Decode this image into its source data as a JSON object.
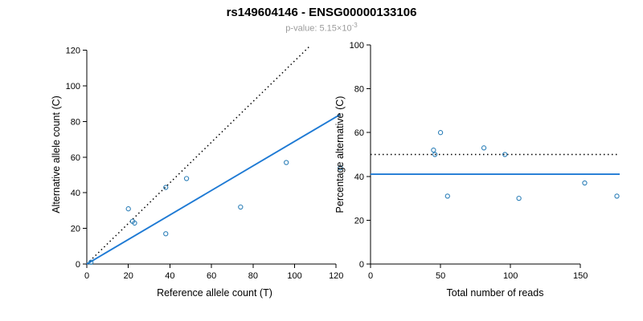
{
  "title": "rs149604146 - ENSG00000133106",
  "p_value": {
    "prefix": "p-value: 5.15×10",
    "exponent": "-3"
  },
  "colors": {
    "line_blue": "#1E7AD4",
    "point_blue": "#2C7FB8",
    "dotted_black": "#000000",
    "subtitle_gray": "#9b9b9b"
  },
  "chart_data": [
    {
      "type": "scatter",
      "title": "",
      "xlabel": "Reference allele count (T)",
      "ylabel": "Alternative allele count (C)",
      "xlim": [
        0,
        123
      ],
      "ylim": [
        0,
        123
      ],
      "xticks": [
        0,
        20,
        40,
        60,
        80,
        100,
        120
      ],
      "yticks": [
        0,
        20,
        40,
        60,
        80,
        100,
        120
      ],
      "grid": false,
      "legend": "none",
      "points": [
        [
          2,
          1
        ],
        [
          20,
          31
        ],
        [
          22,
          24
        ],
        [
          23,
          23
        ],
        [
          38,
          17
        ],
        [
          38,
          43
        ],
        [
          48,
          48
        ],
        [
          74,
          32
        ],
        [
          96,
          57
        ],
        [
          122,
          54
        ]
      ],
      "lines": [
        {
          "name": "expected-identity-line",
          "style": "dotted",
          "color": "#000000",
          "x1": 0,
          "y1": 0,
          "x2": 107,
          "y2": 122
        },
        {
          "name": "fitted-allelic-ratio-line",
          "style": "solid",
          "color": "#1E7AD4",
          "x1": 0,
          "y1": 0,
          "x2": 122,
          "y2": 84
        }
      ]
    },
    {
      "type": "scatter",
      "title": "",
      "xlabel": "Total number of reads",
      "ylabel": "Percentage alternative (C)",
      "xlim": [
        0,
        178
      ],
      "ylim": [
        0,
        100
      ],
      "xticks": [
        0,
        50,
        100,
        150
      ],
      "yticks": [
        0,
        20,
        40,
        60,
        80,
        100
      ],
      "grid": false,
      "legend": "none",
      "points": [
        [
          45,
          52
        ],
        [
          46,
          50
        ],
        [
          50,
          60
        ],
        [
          55,
          31
        ],
        [
          81,
          53
        ],
        [
          96,
          50
        ],
        [
          106,
          30
        ],
        [
          153,
          37
        ],
        [
          176,
          31
        ]
      ],
      "lines": [
        {
          "name": "expected-50pct-line",
          "style": "dotted",
          "color": "#000000",
          "x1": 0,
          "y1": 50,
          "x2": 178,
          "y2": 50
        },
        {
          "name": "fitted-41pct-line",
          "style": "solid",
          "color": "#1E7AD4",
          "x1": 0,
          "y1": 41,
          "x2": 178,
          "y2": 41
        }
      ]
    }
  ]
}
